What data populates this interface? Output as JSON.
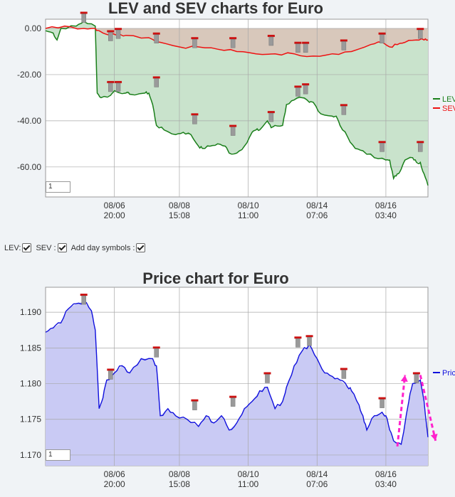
{
  "top_chart": {
    "title": "LEV and SEV charts for Euro",
    "zoom_value": "1"
  },
  "controls": {
    "lev_label": "LEV:",
    "sev_label": "SEV :",
    "day_symbols_label": "Add day symbols :"
  },
  "bottom_chart": {
    "title": "Price chart for Euro",
    "zoom_value": "1"
  },
  "colors": {
    "lev": "#1a7f1a",
    "sev": "#ee1111",
    "price": "#1010dd",
    "annotation_arrow": "#ff22cc"
  },
  "chart_data": [
    {
      "type": "line",
      "title": "LEV and SEV charts for Euro",
      "x_tick_labels": [
        [
          "08/06",
          "20:00"
        ],
        [
          "08/08",
          "15:08"
        ],
        [
          "08/10",
          "11:00"
        ],
        [
          "08/14",
          "07:06"
        ],
        [
          "08/16",
          "03:40"
        ]
      ],
      "y_ticks": [
        0,
        -20,
        -40,
        -60
      ],
      "y_tick_labels": [
        "0.00",
        "-20.00",
        "-40.00",
        "-60.00"
      ],
      "ylim": [
        -73,
        4
      ],
      "grid": true,
      "legend_position": "right",
      "series": [
        {
          "name": "LEV",
          "color": "#1a7f1a",
          "fill": "#c9e3cc",
          "points": [
            [
              0,
              -1
            ],
            [
              2,
              -2
            ],
            [
              3,
              -5
            ],
            [
              4,
              0
            ],
            [
              8,
              1
            ],
            [
              10,
              3
            ],
            [
              13,
              1
            ],
            [
              13.5,
              -28
            ],
            [
              14.5,
              -30
            ],
            [
              17,
              -29
            ],
            [
              18,
              -27
            ],
            [
              21,
              -28
            ],
            [
              22,
              -28.5
            ],
            [
              26,
              -28
            ],
            [
              27,
              -28
            ],
            [
              28,
              -33
            ],
            [
              29,
              -42
            ],
            [
              31,
              -44
            ],
            [
              34,
              -46
            ],
            [
              36,
              -45
            ],
            [
              38,
              -46
            ],
            [
              40,
              -51
            ],
            [
              41,
              -52
            ],
            [
              43,
              -51
            ],
            [
              45,
              -50
            ],
            [
              47,
              -51
            ],
            [
              48,
              -54
            ],
            [
              50,
              -54
            ],
            [
              52,
              -51
            ],
            [
              54,
              -45
            ],
            [
              55,
              -44
            ],
            [
              56,
              -44
            ],
            [
              58,
              -40
            ],
            [
              59,
              -43
            ],
            [
              60,
              -42
            ],
            [
              62,
              -42
            ],
            [
              63,
              -33
            ],
            [
              65,
              -31
            ],
            [
              67,
              -30
            ],
            [
              69,
              -32
            ],
            [
              70,
              -32
            ],
            [
              72,
              -37
            ],
            [
              75,
              -38
            ],
            [
              76,
              -38
            ],
            [
              77,
              -42
            ],
            [
              79,
              -47
            ],
            [
              81,
              -52
            ],
            [
              83,
              -53
            ],
            [
              86,
              -56
            ],
            [
              89,
              -57
            ],
            [
              90,
              -57
            ],
            [
              91,
              -65
            ],
            [
              92,
              -63
            ],
            [
              93,
              -61
            ],
            [
              94,
              -57
            ],
            [
              96,
              -56
            ],
            [
              97,
              -58
            ],
            [
              98,
              -58
            ],
            [
              99,
              -63
            ],
            [
              100,
              -68
            ]
          ]
        },
        {
          "name": "SEV",
          "color": "#ee1111",
          "fill": "#d8c8bb",
          "points": [
            [
              0,
              0
            ],
            [
              5,
              1
            ],
            [
              10,
              0
            ],
            [
              13,
              0
            ],
            [
              14,
              -1
            ],
            [
              17,
              -3
            ],
            [
              19,
              -2
            ],
            [
              21,
              -3
            ],
            [
              27,
              -4
            ],
            [
              30,
              -6
            ],
            [
              35,
              -8
            ],
            [
              40,
              -8
            ],
            [
              45,
              -9
            ],
            [
              50,
              -10
            ],
            [
              55,
              -11
            ],
            [
              60,
              -11
            ],
            [
              65,
              -11
            ],
            [
              70,
              -12
            ],
            [
              75,
              -11
            ],
            [
              80,
              -10
            ],
            [
              85,
              -7
            ],
            [
              88,
              -6
            ],
            [
              90,
              -8
            ],
            [
              92,
              -7
            ],
            [
              94,
              -6
            ],
            [
              97,
              -5
            ],
            [
              99,
              -5
            ],
            [
              100,
              -5
            ]
          ]
        }
      ],
      "day_markers": [
        {
          "x": 10,
          "y": 6
        },
        {
          "x": 17,
          "y": -2
        },
        {
          "x": 19,
          "y": -1
        },
        {
          "x": 29,
          "y": -3
        },
        {
          "x": 39,
          "y": -5
        },
        {
          "x": 49,
          "y": -5
        },
        {
          "x": 59,
          "y": -4
        },
        {
          "x": 66,
          "y": -7
        },
        {
          "x": 68,
          "y": -7
        },
        {
          "x": 78,
          "y": -6
        },
        {
          "x": 88,
          "y": -3
        },
        {
          "x": 98,
          "y": -1
        },
        {
          "x": 17,
          "y": -24
        },
        {
          "x": 19,
          "y": -24
        },
        {
          "x": 29,
          "y": -22
        },
        {
          "x": 39,
          "y": -38
        },
        {
          "x": 49,
          "y": -43
        },
        {
          "x": 59,
          "y": -37
        },
        {
          "x": 66,
          "y": -26
        },
        {
          "x": 68,
          "y": -25
        },
        {
          "x": 78,
          "y": -34
        },
        {
          "x": 88,
          "y": -50
        },
        {
          "x": 98,
          "y": -50
        }
      ]
    },
    {
      "type": "area",
      "title": "Price chart for Euro",
      "x_tick_labels": [
        [
          "08/06",
          "20:00"
        ],
        [
          "08/08",
          "15:08"
        ],
        [
          "08/10",
          "11:00"
        ],
        [
          "08/14",
          "07:06"
        ],
        [
          "08/16",
          "03:40"
        ]
      ],
      "y_ticks": [
        1.19,
        1.185,
        1.18,
        1.175,
        1.17
      ],
      "y_tick_labels": [
        "1.190",
        "1.185",
        "1.180",
        "1.175",
        "1.170"
      ],
      "ylim": [
        1.1685,
        1.1935
      ],
      "grid": true,
      "legend_position": "right",
      "series": [
        {
          "name": "Pric",
          "color": "#1010dd",
          "fill": "#c9caf4",
          "points": [
            [
              0,
              1.1872
            ],
            [
              2,
              1.1878
            ],
            [
              4,
              1.1885
            ],
            [
              6,
              1.1905
            ],
            [
              8,
              1.1912
            ],
            [
              10,
              1.1915
            ],
            [
              12,
              1.1902
            ],
            [
              13,
              1.1875
            ],
            [
              14,
              1.1765
            ],
            [
              15,
              1.178
            ],
            [
              16,
              1.1805
            ],
            [
              18,
              1.1815
            ],
            [
              20,
              1.1825
            ],
            [
              22,
              1.1815
            ],
            [
              25,
              1.1835
            ],
            [
              28,
              1.1835
            ],
            [
              29,
              1.1825
            ],
            [
              30,
              1.1755
            ],
            [
              32,
              1.1765
            ],
            [
              34,
              1.1755
            ],
            [
              37,
              1.175
            ],
            [
              40,
              1.174
            ],
            [
              42,
              1.1755
            ],
            [
              44,
              1.1745
            ],
            [
              46,
              1.1755
            ],
            [
              48,
              1.1735
            ],
            [
              50,
              1.1745
            ],
            [
              52,
              1.1765
            ],
            [
              54,
              1.1775
            ],
            [
              56,
              1.179
            ],
            [
              58,
              1.1795
            ],
            [
              60,
              1.1765
            ],
            [
              62,
              1.1775
            ],
            [
              63,
              1.1795
            ],
            [
              65,
              1.1825
            ],
            [
              67,
              1.1845
            ],
            [
              69,
              1.1855
            ],
            [
              71,
              1.1835
            ],
            [
              73,
              1.1815
            ],
            [
              75,
              1.181
            ],
            [
              77,
              1.1805
            ],
            [
              79,
              1.1795
            ],
            [
              80,
              1.179
            ],
            [
              82,
              1.177
            ],
            [
              83,
              1.1755
            ],
            [
              84,
              1.1735
            ],
            [
              86,
              1.1755
            ],
            [
              88,
              1.176
            ],
            [
              89,
              1.1755
            ],
            [
              90,
              1.1735
            ],
            [
              91,
              1.172
            ],
            [
              93,
              1.1715
            ],
            [
              95,
              1.1775
            ],
            [
              96,
              1.18
            ],
            [
              98,
              1.1805
            ],
            [
              99,
              1.1775
            ],
            [
              100,
              1.1725
            ]
          ]
        }
      ],
      "day_markers": [
        {
          "x": 10,
          "y": 1.1922
        },
        {
          "x": 17,
          "y": 1.1817
        },
        {
          "x": 29,
          "y": 1.1848
        },
        {
          "x": 39,
          "y": 1.1774
        },
        {
          "x": 49,
          "y": 1.1779
        },
        {
          "x": 58,
          "y": 1.1812
        },
        {
          "x": 66,
          "y": 1.1862
        },
        {
          "x": 69,
          "y": 1.1864
        },
        {
          "x": 78,
          "y": 1.1818
        },
        {
          "x": 88,
          "y": 1.1777
        },
        {
          "x": 97,
          "y": 1.1812
        }
      ],
      "annotations": [
        {
          "kind": "arrow-up",
          "from": [
            92,
            1.1712
          ],
          "to": [
            94,
            1.1812
          ]
        },
        {
          "kind": "arrow-down",
          "from": [
            98,
            1.1812
          ],
          "to": [
            102,
            1.172
          ]
        }
      ]
    }
  ]
}
